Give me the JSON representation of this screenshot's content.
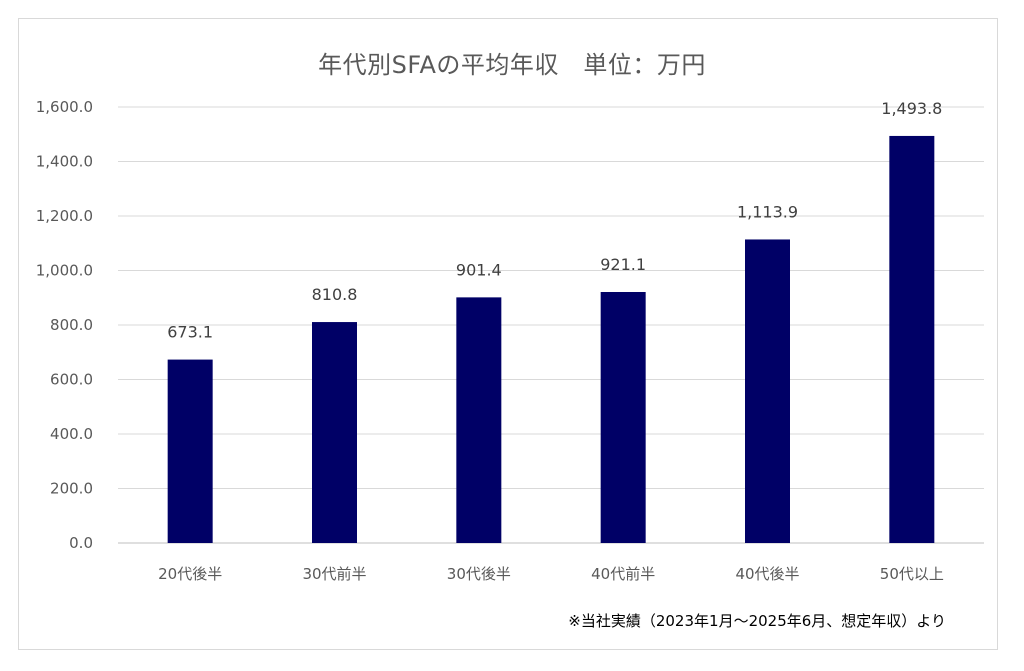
{
  "chart_data": {
    "type": "bar",
    "title": "年代別SFAの平均年収　単位：万円",
    "categories": [
      "20代後半",
      "30代前半",
      "30代後半",
      "40代前半",
      "40代後半",
      "50代以上"
    ],
    "values": [
      673.1,
      810.8,
      901.4,
      921.1,
      1113.9,
      1493.8
    ],
    "value_labels": [
      "673.1",
      "810.8",
      "901.4",
      "921.1",
      "1,113.9",
      "1,493.8"
    ],
    "yticks": [
      "0.0",
      "200.0",
      "400.0",
      "600.0",
      "800.0",
      "1,000.0",
      "1,200.0",
      "1,400.0",
      "1,600.0"
    ],
    "ylim": [
      0,
      1600
    ],
    "xlabel": "",
    "ylabel": "",
    "grid": true,
    "bar_color": "#000066",
    "grid_color": "#d9d9d9",
    "footnote": "※当社実績（2023年1月～2025年6月、想定年収）より"
  }
}
